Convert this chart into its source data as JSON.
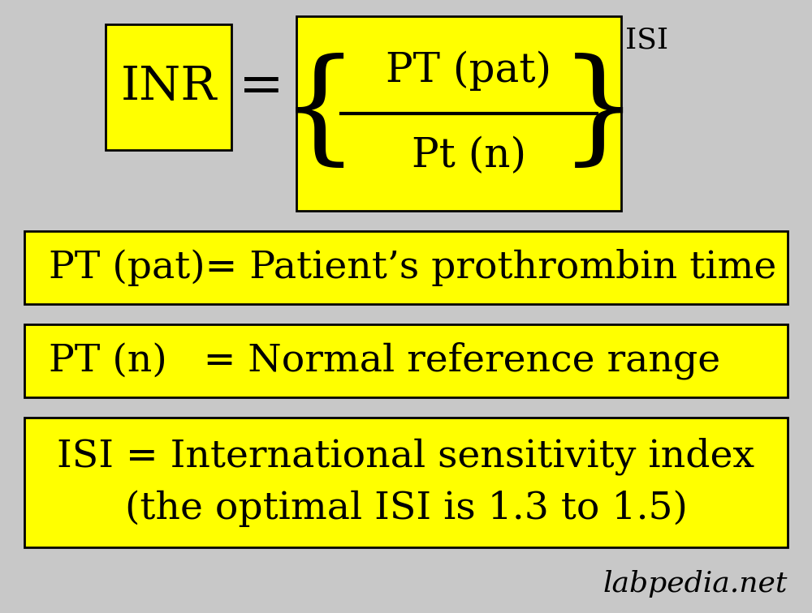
{
  "background_color": "#c8c8c8",
  "yellow": "#ffff00",
  "black": "#000000",
  "watermark": "labpedia.net",
  "box1_text": "INR",
  "equals_text": "=",
  "numerator_text": "PT (pat)",
  "denominator_text": "Pt (n)",
  "superscript_text": "ISI",
  "line1_text": "PT (pat)= Patient’s prothrombin time",
  "line2_text": "PT (n)   = Normal reference range",
  "line3a_text": "ISI = International sensitivity index",
  "line3b_text": "(the optimal ISI is 1.3 to 1.5)",
  "font_size_inr": 42,
  "font_size_equals": 48,
  "font_size_formula_num": 36,
  "font_size_formula_den": 36,
  "font_size_brace": 110,
  "font_size_super": 26,
  "font_size_rows": 34,
  "font_size_watermark": 26
}
